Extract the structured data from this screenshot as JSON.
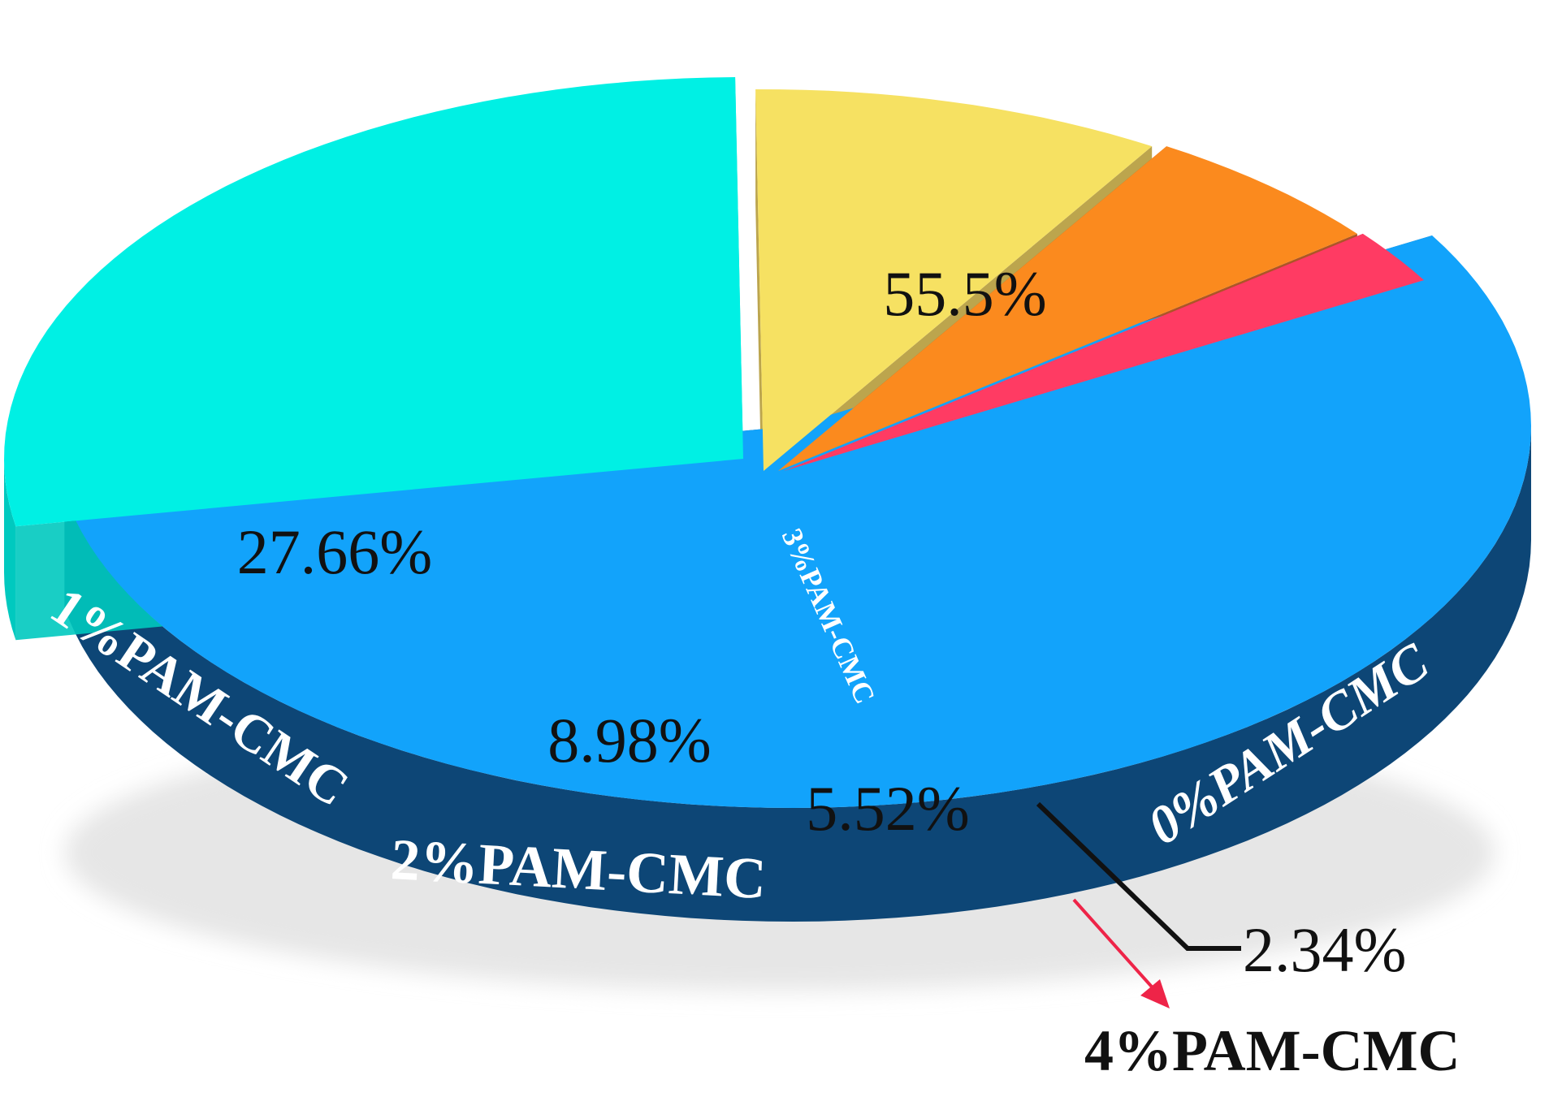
{
  "chart_data": {
    "type": "pie",
    "style": "3d-exploded",
    "slices": [
      {
        "label": "0%PAM-CMC",
        "value": 55.5,
        "value_text": "55.5%",
        "color": "#12a3fb",
        "side_color": "#0d4676"
      },
      {
        "label": "1%PAM-CMC",
        "value": 27.66,
        "value_text": "27.66%",
        "color": "#00f0e4",
        "side_color": "#00c9bf"
      },
      {
        "label": "2%PAM-CMC",
        "value": 8.98,
        "value_text": "8.98%",
        "color": "#f6e162",
        "side_color": "#b59b3a"
      },
      {
        "label": "3%PAM-CMC",
        "value": 5.52,
        "value_text": "5.52%",
        "color": "#fb8a1e",
        "side_color": "#a4450d"
      },
      {
        "label": "4%PAM-CMC",
        "value": 2.34,
        "value_text": "2.34%",
        "color": "#ff3b63",
        "side_color": "#9e0f2c"
      }
    ],
    "callout": {
      "value_text": "2.34%",
      "label": "4%PAM-CMC",
      "line_color": "#111111",
      "arrow_color": "#ee2448"
    }
  }
}
